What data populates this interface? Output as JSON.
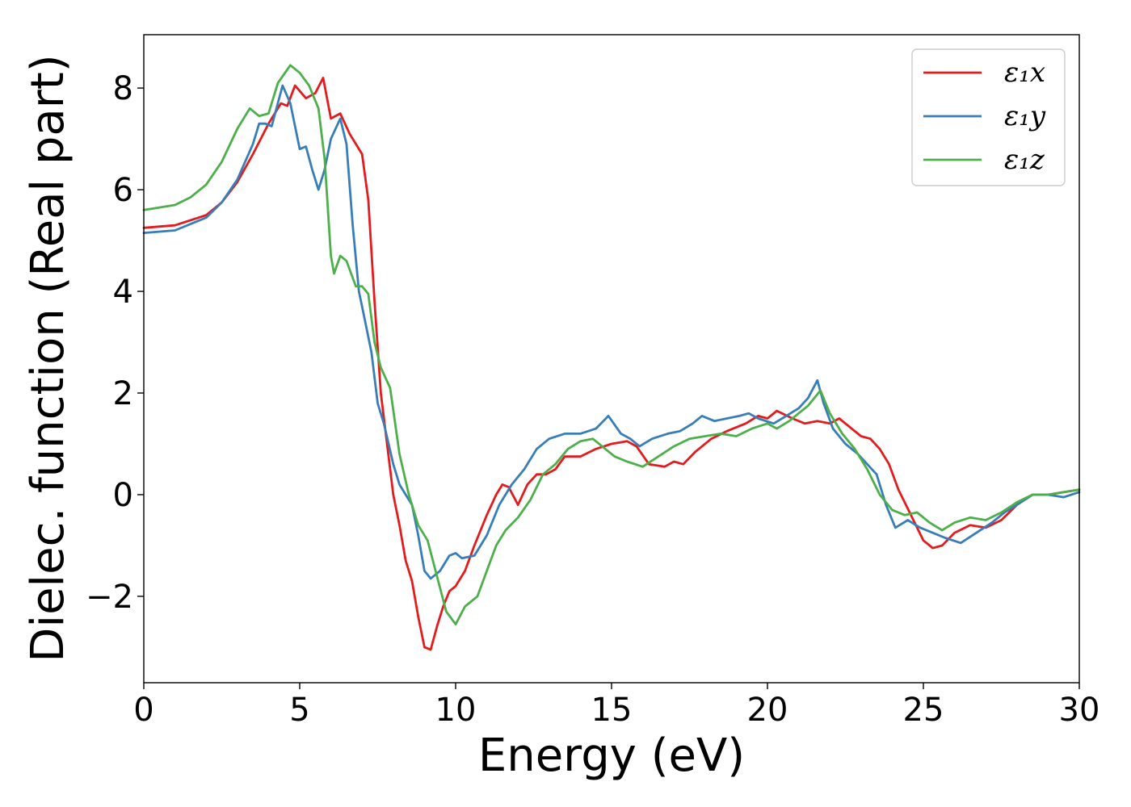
{
  "chart_data": {
    "type": "line",
    "title": "",
    "xlabel": "Energy (eV)",
    "ylabel": "Dielec. function (Real part)",
    "xlim": [
      0,
      30
    ],
    "ylim": [
      -3.7,
      9.05
    ],
    "xticks": [
      0,
      5,
      10,
      15,
      20,
      25,
      30
    ],
    "yticks": [
      -2,
      0,
      2,
      4,
      6,
      8
    ],
    "ytick_labels": [
      "−2",
      "0",
      "2",
      "4",
      "6",
      "8"
    ],
    "grid": false,
    "legend_position": "top-right",
    "series": [
      {
        "name": "ε₁x",
        "color": "#e41a1c",
        "points": [
          [
            0,
            5.25
          ],
          [
            1,
            5.3
          ],
          [
            2,
            5.5
          ],
          [
            2.5,
            5.75
          ],
          [
            3,
            6.15
          ],
          [
            3.5,
            6.7
          ],
          [
            4,
            7.3
          ],
          [
            4.4,
            7.7
          ],
          [
            4.6,
            7.65
          ],
          [
            4.85,
            8.05
          ],
          [
            5.2,
            7.8
          ],
          [
            5.5,
            7.9
          ],
          [
            5.75,
            8.2
          ],
          [
            6,
            7.4
          ],
          [
            6.3,
            7.5
          ],
          [
            6.6,
            7.1
          ],
          [
            6.8,
            6.9
          ],
          [
            7,
            6.7
          ],
          [
            7.2,
            5.8
          ],
          [
            7.4,
            3.8
          ],
          [
            7.6,
            2.0
          ],
          [
            7.8,
            1.0
          ],
          [
            8,
            0.0
          ],
          [
            8.2,
            -0.6
          ],
          [
            8.4,
            -1.3
          ],
          [
            8.6,
            -1.7
          ],
          [
            8.8,
            -2.4
          ],
          [
            9,
            -3.0
          ],
          [
            9.2,
            -3.05
          ],
          [
            9.4,
            -2.6
          ],
          [
            9.6,
            -2.2
          ],
          [
            9.8,
            -1.9
          ],
          [
            10,
            -1.8
          ],
          [
            10.3,
            -1.5
          ],
          [
            10.6,
            -1.0
          ],
          [
            11,
            -0.4
          ],
          [
            11.3,
            0.0
          ],
          [
            11.5,
            0.2
          ],
          [
            11.7,
            0.15
          ],
          [
            12,
            -0.2
          ],
          [
            12.3,
            0.2
          ],
          [
            12.6,
            0.4
          ],
          [
            12.9,
            0.4
          ],
          [
            13.2,
            0.5
          ],
          [
            13.5,
            0.75
          ],
          [
            14,
            0.75
          ],
          [
            14.5,
            0.9
          ],
          [
            15,
            1.0
          ],
          [
            15.5,
            1.05
          ],
          [
            15.8,
            0.95
          ],
          [
            16.2,
            0.6
          ],
          [
            16.7,
            0.55
          ],
          [
            17,
            0.65
          ],
          [
            17.3,
            0.6
          ],
          [
            17.7,
            0.85
          ],
          [
            18.2,
            1.1
          ],
          [
            18.7,
            1.25
          ],
          [
            19.3,
            1.4
          ],
          [
            19.7,
            1.55
          ],
          [
            20,
            1.5
          ],
          [
            20.3,
            1.65
          ],
          [
            20.8,
            1.5
          ],
          [
            21.2,
            1.4
          ],
          [
            21.6,
            1.45
          ],
          [
            22,
            1.4
          ],
          [
            22.3,
            1.5
          ],
          [
            22.7,
            1.3
          ],
          [
            23,
            1.15
          ],
          [
            23.3,
            1.1
          ],
          [
            23.6,
            0.9
          ],
          [
            23.9,
            0.6
          ],
          [
            24.2,
            0.1
          ],
          [
            24.6,
            -0.4
          ],
          [
            25,
            -0.9
          ],
          [
            25.3,
            -1.05
          ],
          [
            25.6,
            -1.0
          ],
          [
            26,
            -0.75
          ],
          [
            26.5,
            -0.6
          ],
          [
            27,
            -0.65
          ],
          [
            27.5,
            -0.5
          ],
          [
            28,
            -0.2
          ],
          [
            28.5,
            0.0
          ],
          [
            29,
            0.0
          ],
          [
            30,
            0.1
          ]
        ]
      },
      {
        "name": "ε₁y",
        "color": "#377eb8",
        "points": [
          [
            0,
            5.15
          ],
          [
            1,
            5.2
          ],
          [
            2,
            5.45
          ],
          [
            2.5,
            5.75
          ],
          [
            3,
            6.2
          ],
          [
            3.5,
            6.9
          ],
          [
            3.7,
            7.3
          ],
          [
            3.9,
            7.3
          ],
          [
            4.1,
            7.25
          ],
          [
            4.45,
            8.05
          ],
          [
            4.7,
            7.7
          ],
          [
            5,
            6.8
          ],
          [
            5.2,
            6.85
          ],
          [
            5.4,
            6.4
          ],
          [
            5.6,
            6.0
          ],
          [
            5.8,
            6.4
          ],
          [
            6,
            7.0
          ],
          [
            6.3,
            7.4
          ],
          [
            6.5,
            6.9
          ],
          [
            6.7,
            5.3
          ],
          [
            6.9,
            4.0
          ],
          [
            7.1,
            3.4
          ],
          [
            7.3,
            2.8
          ],
          [
            7.5,
            1.8
          ],
          [
            7.7,
            1.4
          ],
          [
            8,
            0.6
          ],
          [
            8.2,
            0.2
          ],
          [
            8.4,
            0.0
          ],
          [
            8.6,
            -0.2
          ],
          [
            8.8,
            -0.8
          ],
          [
            9,
            -1.5
          ],
          [
            9.2,
            -1.65
          ],
          [
            9.5,
            -1.5
          ],
          [
            9.8,
            -1.2
          ],
          [
            10,
            -1.15
          ],
          [
            10.2,
            -1.25
          ],
          [
            10.6,
            -1.2
          ],
          [
            11,
            -0.8
          ],
          [
            11.4,
            -0.2
          ],
          [
            11.8,
            0.2
          ],
          [
            12.2,
            0.5
          ],
          [
            12.6,
            0.9
          ],
          [
            13,
            1.1
          ],
          [
            13.5,
            1.2
          ],
          [
            14,
            1.2
          ],
          [
            14.5,
            1.3
          ],
          [
            14.9,
            1.55
          ],
          [
            15.3,
            1.2
          ],
          [
            15.6,
            1.1
          ],
          [
            15.9,
            0.95
          ],
          [
            16.3,
            1.1
          ],
          [
            16.8,
            1.2
          ],
          [
            17.2,
            1.25
          ],
          [
            17.6,
            1.4
          ],
          [
            17.9,
            1.55
          ],
          [
            18.3,
            1.45
          ],
          [
            18.7,
            1.5
          ],
          [
            19.1,
            1.55
          ],
          [
            19.4,
            1.6
          ],
          [
            19.7,
            1.5
          ],
          [
            20.2,
            1.4
          ],
          [
            20.6,
            1.55
          ],
          [
            21,
            1.7
          ],
          [
            21.3,
            1.9
          ],
          [
            21.6,
            2.25
          ],
          [
            21.8,
            1.8
          ],
          [
            22.1,
            1.3
          ],
          [
            22.5,
            1.0
          ],
          [
            22.9,
            0.8
          ],
          [
            23.2,
            0.6
          ],
          [
            23.5,
            0.4
          ],
          [
            23.8,
            -0.2
          ],
          [
            24.1,
            -0.65
          ],
          [
            24.5,
            -0.5
          ],
          [
            24.9,
            -0.65
          ],
          [
            25.3,
            -0.75
          ],
          [
            25.7,
            -0.85
          ],
          [
            26.2,
            -0.95
          ],
          [
            26.7,
            -0.75
          ],
          [
            27.2,
            -0.55
          ],
          [
            27.6,
            -0.35
          ],
          [
            28,
            -0.2
          ],
          [
            28.5,
            0.0
          ],
          [
            29,
            0.0
          ],
          [
            29.5,
            -0.05
          ],
          [
            30,
            0.05
          ]
        ]
      },
      {
        "name": "ε₁z",
        "color": "#4daf4a",
        "points": [
          [
            0,
            5.6
          ],
          [
            1,
            5.7
          ],
          [
            1.5,
            5.85
          ],
          [
            2,
            6.1
          ],
          [
            2.5,
            6.55
          ],
          [
            3,
            7.2
          ],
          [
            3.4,
            7.6
          ],
          [
            3.7,
            7.45
          ],
          [
            4,
            7.5
          ],
          [
            4.3,
            8.1
          ],
          [
            4.7,
            8.45
          ],
          [
            5,
            8.3
          ],
          [
            5.3,
            8.05
          ],
          [
            5.6,
            7.6
          ],
          [
            5.8,
            6.6
          ],
          [
            6,
            4.7
          ],
          [
            6.1,
            4.35
          ],
          [
            6.3,
            4.7
          ],
          [
            6.5,
            4.6
          ],
          [
            6.8,
            4.1
          ],
          [
            7,
            4.1
          ],
          [
            7.2,
            3.95
          ],
          [
            7.4,
            3.0
          ],
          [
            7.6,
            2.5
          ],
          [
            7.9,
            2.1
          ],
          [
            8.2,
            0.8
          ],
          [
            8.5,
            0.0
          ],
          [
            8.8,
            -0.6
          ],
          [
            9.1,
            -0.9
          ],
          [
            9.4,
            -1.6
          ],
          [
            9.7,
            -2.3
          ],
          [
            10,
            -2.55
          ],
          [
            10.3,
            -2.2
          ],
          [
            10.7,
            -2.0
          ],
          [
            11,
            -1.5
          ],
          [
            11.3,
            -1.0
          ],
          [
            11.6,
            -0.7
          ],
          [
            12,
            -0.45
          ],
          [
            12.4,
            -0.1
          ],
          [
            12.8,
            0.4
          ],
          [
            13.2,
            0.6
          ],
          [
            13.6,
            0.9
          ],
          [
            14,
            1.05
          ],
          [
            14.4,
            1.1
          ],
          [
            14.8,
            0.9
          ],
          [
            15.1,
            0.75
          ],
          [
            15.5,
            0.65
          ],
          [
            16,
            0.55
          ],
          [
            16.5,
            0.75
          ],
          [
            17,
            0.95
          ],
          [
            17.5,
            1.1
          ],
          [
            18,
            1.15
          ],
          [
            18.5,
            1.2
          ],
          [
            19,
            1.15
          ],
          [
            19.5,
            1.3
          ],
          [
            20,
            1.4
          ],
          [
            20.3,
            1.3
          ],
          [
            20.7,
            1.45
          ],
          [
            21,
            1.6
          ],
          [
            21.3,
            1.75
          ],
          [
            21.7,
            2.05
          ],
          [
            22,
            1.6
          ],
          [
            22.4,
            1.2
          ],
          [
            22.8,
            0.9
          ],
          [
            23.2,
            0.5
          ],
          [
            23.6,
            0.0
          ],
          [
            24,
            -0.3
          ],
          [
            24.4,
            -0.4
          ],
          [
            24.8,
            -0.35
          ],
          [
            25.2,
            -0.55
          ],
          [
            25.6,
            -0.7
          ],
          [
            26,
            -0.55
          ],
          [
            26.5,
            -0.45
          ],
          [
            27,
            -0.5
          ],
          [
            27.5,
            -0.35
          ],
          [
            28,
            -0.15
          ],
          [
            28.5,
            0.0
          ],
          [
            29,
            0.0
          ],
          [
            29.5,
            0.05
          ],
          [
            30,
            0.1
          ]
        ]
      }
    ]
  }
}
